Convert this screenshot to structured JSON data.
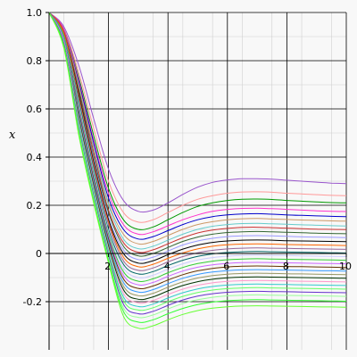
{
  "chart_data": {
    "type": "line",
    "title": "",
    "xlabel": "",
    "ylabel": "x",
    "xlim": [
      0,
      10
    ],
    "ylim": [
      -0.4,
      1.0
    ],
    "grid": true,
    "x_ticks": [
      2,
      4,
      6,
      8,
      10
    ],
    "x_tick_labels": [
      "2",
      "4",
      "6",
      "8",
      "10"
    ],
    "y_ticks": [
      -0.2,
      0,
      0.2,
      0.4,
      0.6,
      0.8,
      1.0
    ],
    "y_tick_labels": [
      "-0.2",
      "0",
      "0.2",
      "0.4",
      "0.6",
      "0.8",
      "1.0"
    ],
    "x": [
      0,
      0.5,
      1,
      1.5,
      2,
      2.5,
      3,
      3.5,
      4,
      4.5,
      5,
      5.5,
      6,
      6.5,
      7,
      7.5,
      8,
      8.5,
      9,
      9.5,
      10
    ],
    "series": [
      {
        "color": "#9955cc",
        "values": [
          1.0,
          0.94,
          0.78,
          0.56,
          0.35,
          0.22,
          0.175,
          0.18,
          0.21,
          0.245,
          0.275,
          0.295,
          0.305,
          0.31,
          0.31,
          0.308,
          0.304,
          0.3,
          0.296,
          0.292,
          0.29
        ]
      },
      {
        "color": "#ff9999",
        "values": [
          1.0,
          0.93,
          0.75,
          0.52,
          0.3,
          0.17,
          0.13,
          0.14,
          0.17,
          0.2,
          0.225,
          0.24,
          0.25,
          0.255,
          0.256,
          0.254,
          0.25,
          0.247,
          0.244,
          0.241,
          0.24
        ]
      },
      {
        "color": "#009900",
        "values": [
          1.0,
          0.93,
          0.73,
          0.49,
          0.27,
          0.14,
          0.1,
          0.11,
          0.14,
          0.17,
          0.195,
          0.21,
          0.22,
          0.225,
          0.226,
          0.224,
          0.22,
          0.217,
          0.214,
          0.211,
          0.21
        ]
      },
      {
        "color": "#ff33cc",
        "values": [
          1.0,
          0.93,
          0.72,
          0.47,
          0.25,
          0.12,
          0.08,
          0.09,
          0.115,
          0.14,
          0.16,
          0.175,
          0.183,
          0.187,
          0.188,
          0.186,
          0.183,
          0.18,
          0.177,
          0.175,
          0.174
        ]
      },
      {
        "color": "#0000cc",
        "values": [
          1.0,
          0.92,
          0.71,
          0.46,
          0.23,
          0.1,
          0.06,
          0.07,
          0.095,
          0.12,
          0.14,
          0.153,
          0.16,
          0.164,
          0.165,
          0.163,
          0.16,
          0.158,
          0.156,
          0.154,
          0.153
        ]
      },
      {
        "color": "#cc9966",
        "values": [
          1.0,
          0.92,
          0.7,
          0.44,
          0.21,
          0.08,
          0.04,
          0.05,
          0.075,
          0.1,
          0.12,
          0.132,
          0.14,
          0.144,
          0.145,
          0.143,
          0.141,
          0.139,
          0.137,
          0.135,
          0.134
        ]
      },
      {
        "color": "#66cccc",
        "values": [
          1.0,
          0.92,
          0.69,
          0.43,
          0.2,
          0.06,
          0.02,
          0.03,
          0.055,
          0.08,
          0.1,
          0.113,
          0.12,
          0.124,
          0.125,
          0.123,
          0.121,
          0.119,
          0.117,
          0.115,
          0.114
        ]
      },
      {
        "color": "#cc3333",
        "values": [
          1.0,
          0.92,
          0.68,
          0.42,
          0.18,
          0.045,
          0.005,
          0.015,
          0.04,
          0.065,
          0.085,
          0.097,
          0.104,
          0.108,
          0.109,
          0.107,
          0.105,
          0.103,
          0.101,
          0.1,
          0.099
        ]
      },
      {
        "color": "#336633",
        "values": [
          1.0,
          0.91,
          0.67,
          0.4,
          0.17,
          0.03,
          -0.01,
          0.0,
          0.025,
          0.05,
          0.068,
          0.08,
          0.087,
          0.09,
          0.091,
          0.09,
          0.088,
          0.086,
          0.084,
          0.083,
          0.082
        ]
      },
      {
        "color": "#9999ff",
        "values": [
          1.0,
          0.91,
          0.66,
          0.39,
          0.15,
          0.015,
          -0.025,
          -0.015,
          0.01,
          0.035,
          0.052,
          0.063,
          0.07,
          0.073,
          0.074,
          0.073,
          0.071,
          0.069,
          0.068,
          0.067,
          0.066
        ]
      },
      {
        "color": "#000000",
        "values": [
          1.0,
          0.91,
          0.66,
          0.38,
          0.14,
          0.0,
          -0.04,
          -0.03,
          -0.005,
          0.018,
          0.035,
          0.046,
          0.052,
          0.055,
          0.056,
          0.055,
          0.053,
          0.052,
          0.051,
          0.05,
          0.049
        ]
      },
      {
        "color": "#ff6600",
        "values": [
          1.0,
          0.91,
          0.65,
          0.37,
          0.13,
          -0.015,
          -0.055,
          -0.045,
          -0.02,
          0.002,
          0.019,
          0.03,
          0.036,
          0.039,
          0.04,
          0.039,
          0.037,
          0.036,
          0.035,
          0.034,
          0.033
        ]
      },
      {
        "color": "#996699",
        "values": [
          1.0,
          0.9,
          0.64,
          0.36,
          0.12,
          -0.03,
          -0.07,
          -0.06,
          -0.035,
          -0.013,
          0.003,
          0.013,
          0.019,
          0.022,
          0.023,
          0.022,
          0.021,
          0.02,
          0.019,
          0.018,
          0.017
        ]
      },
      {
        "color": "#006666",
        "values": [
          1.0,
          0.9,
          0.63,
          0.35,
          0.1,
          -0.045,
          -0.085,
          -0.075,
          -0.05,
          -0.028,
          -0.012,
          -0.002,
          0.004,
          0.007,
          0.008,
          0.007,
          0.006,
          0.005,
          0.004,
          0.003,
          0.002
        ]
      },
      {
        "color": "#ccccff",
        "values": [
          1.0,
          0.9,
          0.62,
          0.34,
          0.09,
          -0.06,
          -0.1,
          -0.09,
          -0.065,
          -0.043,
          -0.027,
          -0.017,
          -0.011,
          -0.008,
          -0.007,
          -0.008,
          -0.009,
          -0.01,
          -0.011,
          -0.012,
          -0.013
        ]
      },
      {
        "color": "#33cc33",
        "values": [
          1.0,
          0.9,
          0.61,
          0.33,
          0.08,
          -0.075,
          -0.115,
          -0.105,
          -0.08,
          -0.058,
          -0.042,
          -0.032,
          -0.026,
          -0.023,
          -0.022,
          -0.023,
          -0.024,
          -0.025,
          -0.026,
          -0.027,
          -0.028
        ]
      },
      {
        "color": "#cc66ff",
        "values": [
          1.0,
          0.89,
          0.6,
          0.32,
          0.07,
          -0.09,
          -0.13,
          -0.12,
          -0.095,
          -0.073,
          -0.057,
          -0.047,
          -0.041,
          -0.038,
          -0.037,
          -0.038,
          -0.039,
          -0.04,
          -0.041,
          -0.042,
          -0.043
        ]
      },
      {
        "color": "#663300",
        "values": [
          1.0,
          0.89,
          0.59,
          0.31,
          0.06,
          -0.105,
          -0.145,
          -0.135,
          -0.11,
          -0.088,
          -0.072,
          -0.062,
          -0.056,
          -0.053,
          -0.052,
          -0.053,
          -0.054,
          -0.055,
          -0.056,
          -0.057,
          -0.058
        ]
      },
      {
        "color": "#3399ff",
        "values": [
          1.0,
          0.89,
          0.58,
          0.3,
          0.05,
          -0.12,
          -0.16,
          -0.15,
          -0.125,
          -0.103,
          -0.087,
          -0.077,
          -0.071,
          -0.068,
          -0.067,
          -0.068,
          -0.069,
          -0.07,
          -0.071,
          -0.072,
          -0.073
        ]
      },
      {
        "color": "#999966",
        "values": [
          1.0,
          0.88,
          0.57,
          0.29,
          0.04,
          -0.135,
          -0.175,
          -0.165,
          -0.14,
          -0.118,
          -0.102,
          -0.092,
          -0.086,
          -0.083,
          -0.082,
          -0.083,
          -0.084,
          -0.085,
          -0.086,
          -0.087,
          -0.088
        ]
      },
      {
        "color": "#003300",
        "values": [
          1.0,
          0.88,
          0.56,
          0.28,
          0.03,
          -0.15,
          -0.19,
          -0.18,
          -0.155,
          -0.133,
          -0.117,
          -0.107,
          -0.101,
          -0.098,
          -0.097,
          -0.098,
          -0.099,
          -0.1,
          -0.101,
          -0.102,
          -0.103
        ]
      },
      {
        "color": "#ff99cc",
        "values": [
          1.0,
          0.88,
          0.55,
          0.27,
          0.02,
          -0.165,
          -0.205,
          -0.195,
          -0.17,
          -0.148,
          -0.132,
          -0.122,
          -0.116,
          -0.113,
          -0.112,
          -0.113,
          -0.114,
          -0.115,
          -0.116,
          -0.117,
          -0.118
        ]
      },
      {
        "color": "#33cccc",
        "values": [
          1.0,
          0.87,
          0.54,
          0.26,
          0.01,
          -0.18,
          -0.22,
          -0.21,
          -0.185,
          -0.163,
          -0.147,
          -0.137,
          -0.131,
          -0.128,
          -0.127,
          -0.128,
          -0.129,
          -0.13,
          -0.131,
          -0.132,
          -0.133
        ]
      },
      {
        "color": "#66ff66",
        "values": [
          1.0,
          0.87,
          0.53,
          0.25,
          0.0,
          -0.195,
          -0.235,
          -0.225,
          -0.2,
          -0.178,
          -0.162,
          -0.152,
          -0.146,
          -0.143,
          -0.142,
          -0.143,
          -0.144,
          -0.145,
          -0.146,
          -0.147,
          -0.148
        ]
      },
      {
        "color": "#6633cc",
        "values": [
          1.0,
          0.87,
          0.52,
          0.24,
          -0.01,
          -0.21,
          -0.25,
          -0.24,
          -0.215,
          -0.193,
          -0.177,
          -0.167,
          -0.161,
          -0.158,
          -0.157,
          -0.158,
          -0.159,
          -0.16,
          -0.161,
          -0.162,
          -0.163
        ]
      },
      {
        "color": "#99ff99",
        "values": [
          1.0,
          0.86,
          0.51,
          0.23,
          -0.02,
          -0.225,
          -0.265,
          -0.255,
          -0.23,
          -0.208,
          -0.192,
          -0.182,
          -0.176,
          -0.173,
          -0.172,
          -0.173,
          -0.174,
          -0.175,
          -0.176,
          -0.177,
          -0.178
        ]
      },
      {
        "color": "#33ff33",
        "values": [
          1.0,
          0.86,
          0.5,
          0.22,
          -0.03,
          -0.24,
          -0.285,
          -0.275,
          -0.25,
          -0.228,
          -0.212,
          -0.202,
          -0.196,
          -0.193,
          -0.192,
          -0.193,
          -0.194,
          -0.195,
          -0.196,
          -0.197,
          -0.198
        ]
      },
      {
        "color": "#66ff33",
        "values": [
          1.0,
          0.85,
          0.49,
          0.21,
          -0.04,
          -0.26,
          -0.31,
          -0.3,
          -0.275,
          -0.253,
          -0.237,
          -0.227,
          -0.221,
          -0.218,
          -0.217,
          -0.218,
          -0.219,
          -0.22,
          -0.221,
          -0.222,
          -0.223
        ]
      }
    ]
  }
}
